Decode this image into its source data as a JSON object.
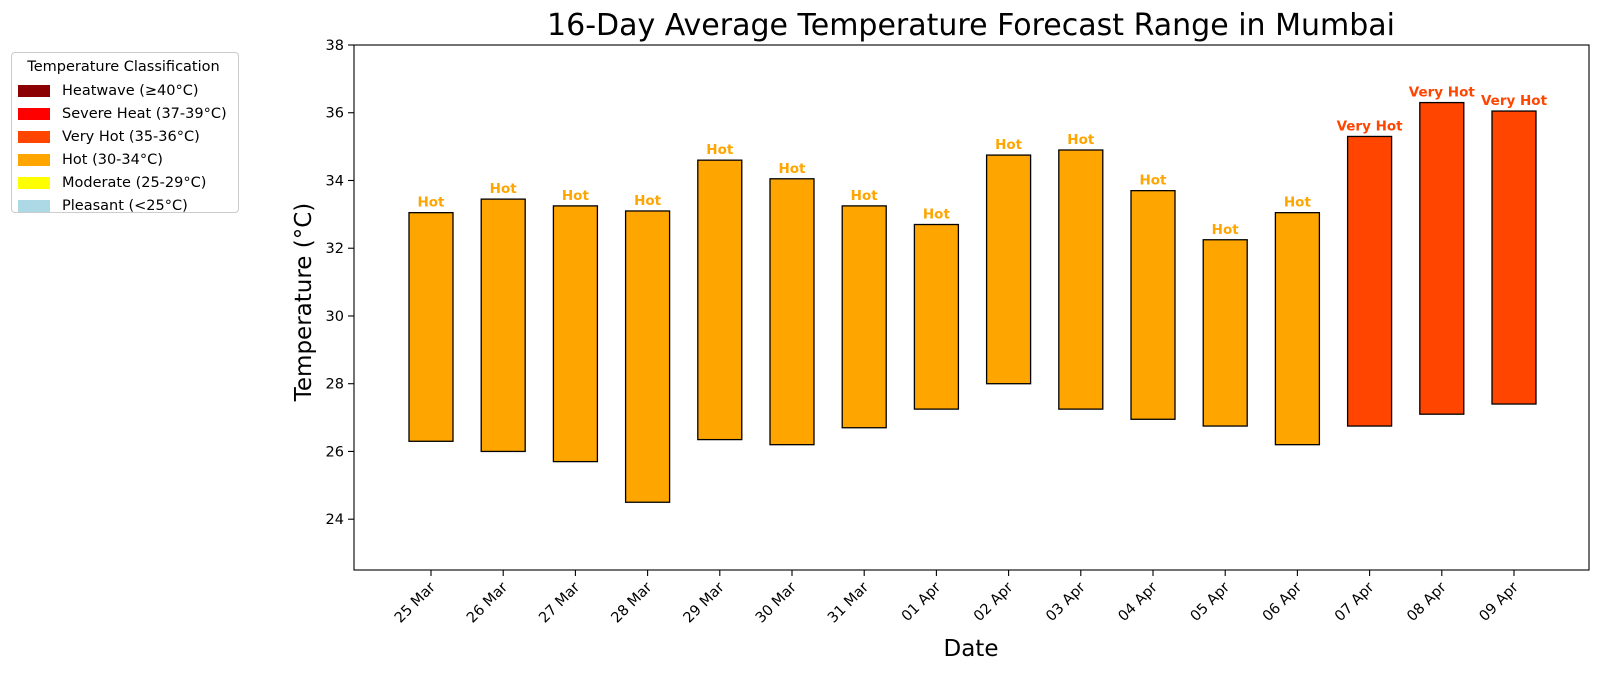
{
  "chart_data": {
    "type": "bar",
    "subtype": "floating-range",
    "title": "16-Day Average Temperature Forecast Range in Mumbai",
    "xlabel": "Date",
    "ylabel": "Temperature (°C)",
    "ylim": [
      22.5,
      38
    ],
    "yticks": [
      24,
      26,
      28,
      30,
      32,
      34,
      36,
      38
    ],
    "grid": false,
    "legend_position": "outside-top-left",
    "categories": [
      "25 Mar",
      "26 Mar",
      "27 Mar",
      "28 Mar",
      "29 Mar",
      "30 Mar",
      "31 Mar",
      "01 Apr",
      "02 Apr",
      "03 Apr",
      "04 Apr",
      "05 Apr",
      "06 Apr",
      "07 Apr",
      "08 Apr",
      "09 Apr"
    ],
    "low": [
      26.3,
      26.0,
      25.7,
      24.5,
      26.35,
      26.2,
      26.7,
      27.25,
      28.0,
      27.25,
      26.95,
      26.75,
      26.2,
      26.75,
      27.1,
      27.4
    ],
    "high": [
      33.05,
      33.45,
      33.25,
      33.1,
      34.6,
      34.05,
      33.25,
      32.7,
      34.75,
      34.9,
      33.7,
      32.25,
      33.05,
      35.3,
      36.3,
      36.05
    ],
    "bar_labels": [
      "Hot",
      "Hot",
      "Hot",
      "Hot",
      "Hot",
      "Hot",
      "Hot",
      "Hot",
      "Hot",
      "Hot",
      "Hot",
      "Hot",
      "Hot",
      "Very Hot",
      "Very Hot",
      "Very Hot"
    ],
    "legend": {
      "title": "Temperature Classification",
      "items": [
        {
          "label": "Heatwave (≥40°C)",
          "color": "#8b0000"
        },
        {
          "label": "Severe Heat (37-39°C)",
          "color": "#ff0000"
        },
        {
          "label": "Very Hot (35-36°C)",
          "color": "#ff4500"
        },
        {
          "label": "Hot (30-34°C)",
          "color": "#ffa500"
        },
        {
          "label": "Moderate (25-29°C)",
          "color": "#ffff00"
        },
        {
          "label": "Pleasant (<25°C)",
          "color": "#add8e6"
        }
      ]
    },
    "class_colors": {
      "Hot": "#ffa500",
      "Very Hot": "#ff4500"
    }
  }
}
